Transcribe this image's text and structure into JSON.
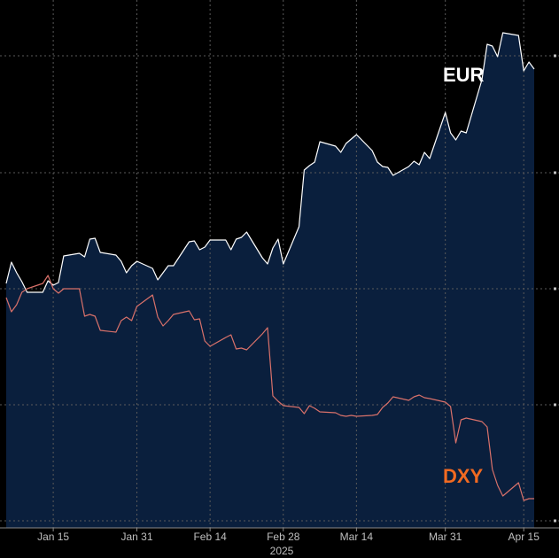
{
  "chart_data": {
    "type": "line",
    "title": "",
    "xlabel": "",
    "ylabel": "",
    "grid": true,
    "x_tick_labels": [
      "Jan 15",
      "Jan 31",
      "Feb 14",
      "Feb 28",
      "Mar 14",
      "Mar 31",
      "Apr 15"
    ],
    "year_label": "2025",
    "dates": [
      "2025-01-06",
      "2025-01-07",
      "2025-01-08",
      "2025-01-09",
      "2025-01-10",
      "2025-01-13",
      "2025-01-14",
      "2025-01-15",
      "2025-01-16",
      "2025-01-17",
      "2025-01-20",
      "2025-01-21",
      "2025-01-22",
      "2025-01-23",
      "2025-01-24",
      "2025-01-27",
      "2025-01-28",
      "2025-01-29",
      "2025-01-30",
      "2025-01-31",
      "2025-02-03",
      "2025-02-04",
      "2025-02-05",
      "2025-02-06",
      "2025-02-07",
      "2025-02-10",
      "2025-02-11",
      "2025-02-12",
      "2025-02-13",
      "2025-02-14",
      "2025-02-17",
      "2025-02-18",
      "2025-02-19",
      "2025-02-20",
      "2025-02-21",
      "2025-02-24",
      "2025-02-25",
      "2025-02-26",
      "2025-02-27",
      "2025-02-28",
      "2025-03-03",
      "2025-03-04",
      "2025-03-05",
      "2025-03-06",
      "2025-03-07",
      "2025-03-10",
      "2025-03-11",
      "2025-03-12",
      "2025-03-13",
      "2025-03-14",
      "2025-03-17",
      "2025-03-18",
      "2025-03-19",
      "2025-03-20",
      "2025-03-21",
      "2025-03-24",
      "2025-03-25",
      "2025-03-26",
      "2025-03-27",
      "2025-03-28",
      "2025-03-31",
      "2025-04-01",
      "2025-04-02",
      "2025-04-03",
      "2025-04-04",
      "2025-04-07",
      "2025-04-08",
      "2025-04-09",
      "2025-04-10",
      "2025-04-11",
      "2025-04-14",
      "2025-04-15",
      "2025-04-16",
      "2025-04-17"
    ],
    "series": [
      {
        "name": "EUR",
        "color": "#ffffff",
        "fill": true,
        "values": [
          320,
          296,
          308,
          318,
          330,
          330,
          317,
          322,
          319,
          289,
          286,
          290,
          270,
          269,
          285,
          288,
          295,
          308,
          300,
          295,
          303,
          316,
          308,
          300,
          300,
          273,
          272,
          282,
          279,
          271,
          271,
          282,
          270,
          268,
          262,
          291,
          298,
          280,
          270,
          298,
          256,
          192,
          187,
          183,
          160,
          165,
          172,
          162,
          157,
          152,
          170,
          183,
          188,
          189,
          198,
          188,
          182,
          186,
          172,
          179,
          127,
          150,
          158,
          148,
          150,
          90,
          50,
          52,
          64,
          37,
          40,
          80,
          70,
          78
        ],
        "label_text": "EUR",
        "label_color": "#ffffff"
      },
      {
        "name": "DXY",
        "color": "#d9716a",
        "fill": false,
        "values": [
          336,
          352,
          344,
          330,
          326,
          320,
          311,
          326,
          331,
          326,
          326,
          357,
          355,
          357,
          373,
          375,
          362,
          358,
          362,
          346,
          333,
          358,
          368,
          362,
          355,
          351,
          361,
          360,
          385,
          391,
          381,
          378,
          394,
          393,
          395,
          377,
          370,
          447,
          453,
          458,
          460,
          467,
          458,
          461,
          465,
          466,
          469,
          470,
          469,
          470,
          469,
          468,
          460,
          455,
          448,
          452,
          448,
          446,
          449,
          450,
          454,
          459,
          500,
          474,
          472,
          476,
          482,
          530,
          548,
          560,
          545,
          565,
          563,
          563
        ],
        "label_text": "DXY",
        "label_color": "#f26a21"
      }
    ]
  }
}
